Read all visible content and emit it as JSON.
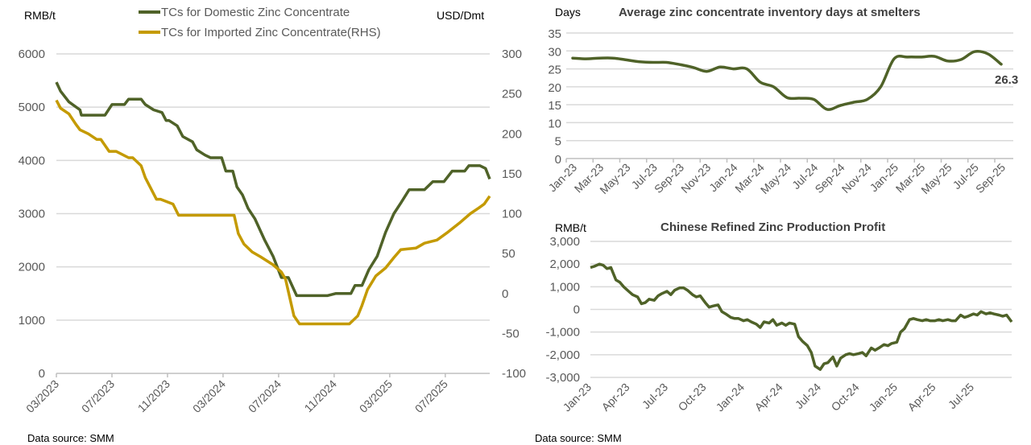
{
  "colors": {
    "domestic": "#4f6228",
    "imported": "#c49a00",
    "single": "#4f6228"
  },
  "chart_data": [
    {
      "type": "line",
      "title": "",
      "left_unit": "RMB/t",
      "right_unit": "USD/Dmt",
      "legend": [
        "TCs for Domestic Zinc Concentrate",
        "TCs for Imported Zinc Concentrate(RHS)"
      ],
      "legend_position": "top-center",
      "yticks_left": [
        "0",
        "1000",
        "2000",
        "3000",
        "4000",
        "5000",
        "6000"
      ],
      "ylim_left": [
        0,
        6000
      ],
      "yticks_right": [
        "-100",
        "-50",
        "0",
        "50",
        "100",
        "150",
        "200",
        "250",
        "300"
      ],
      "ylim_right": [
        -100,
        300
      ],
      "xticks": [
        "03/2023",
        "07/2023",
        "11/2023",
        "03/2024",
        "07/2024",
        "11/2024",
        "03/2025",
        "07/2025"
      ],
      "x_unit": "months since 03/2023",
      "xlim": [
        0,
        31.2
      ],
      "grid": true,
      "source": "Data source: SMM",
      "series": [
        {
          "name": "TCs for Domestic Zinc Concentrate",
          "axis": "left",
          "x": [
            0,
            0.3,
            0.9,
            1.7,
            1.8,
            3.5,
            4.0,
            4.9,
            5.2,
            6.1,
            6.4,
            7.0,
            7.6,
            7.9,
            8.1,
            8.7,
            9.1,
            9.8,
            10.1,
            10.7,
            11.1,
            11.9,
            12.2,
            12.7,
            13.0,
            13.4,
            13.8,
            14.3,
            15.0,
            15.6,
            16.2,
            16.7,
            17.3,
            17.5,
            19.5,
            20.1,
            21.2,
            21.5,
            22.0,
            22.5,
            23.1,
            23.7,
            24.3,
            24.8,
            25.4,
            26.5,
            27.1,
            27.9,
            28.5,
            29.4,
            29.7,
            30.5,
            30.9,
            31.2
          ],
          "values": [
            5470,
            5300,
            5100,
            4950,
            4850,
            4850,
            5050,
            5050,
            5150,
            5150,
            5050,
            4950,
            4900,
            4750,
            4750,
            4650,
            4450,
            4350,
            4200,
            4100,
            4050,
            4050,
            3800,
            3800,
            3500,
            3350,
            3100,
            2900,
            2500,
            2200,
            1800,
            1800,
            1460,
            1460,
            1460,
            1500,
            1500,
            1650,
            1650,
            1950,
            2200,
            2650,
            3000,
            3200,
            3450,
            3450,
            3600,
            3600,
            3800,
            3800,
            3900,
            3900,
            3850,
            3650
          ]
        },
        {
          "name": "TCs for Imported Zinc Concentrate(RHS)",
          "axis": "right",
          "x": [
            0,
            0.3,
            0.9,
            1.4,
            1.7,
            2.3,
            2.9,
            3.2,
            3.8,
            4.3,
            5.2,
            5.5,
            6.1,
            6.4,
            7.2,
            7.5,
            8.4,
            8.8,
            12.8,
            13.1,
            13.5,
            14.1,
            14.7,
            15.6,
            16.2,
            16.5,
            16.8,
            17.1,
            17.5,
            17.8,
            21.1,
            21.7,
            22.0,
            22.4,
            23.0,
            23.7,
            24.3,
            24.8,
            25.9,
            26.5,
            27.4,
            28.2,
            29.0,
            29.8,
            30.4,
            30.8,
            31.2
          ],
          "values": [
            242,
            232,
            225,
            212,
            205,
            200,
            193,
            193,
            178,
            178,
            170,
            170,
            160,
            145,
            118,
            118,
            112,
            98,
            98,
            75,
            62,
            52,
            46,
            36,
            27,
            18,
            -5,
            -28,
            -38,
            -38,
            -38,
            -28,
            -15,
            5,
            22,
            32,
            45,
            55,
            57,
            63,
            67,
            77,
            88,
            100,
            107,
            112,
            122
          ]
        }
      ]
    },
    {
      "type": "line",
      "title": "Average zinc concentrate inventory days at smelters",
      "y_unit": "Days",
      "yticks": [
        "0",
        "5",
        "10",
        "15",
        "20",
        "25",
        "30",
        "35"
      ],
      "ylim": [
        0,
        35
      ],
      "xticks": [
        "Jan-23",
        "Mar-23",
        "May-23",
        "Jul-23",
        "Sep-23",
        "Nov-23",
        "Jan-24",
        "Mar-24",
        "May-24",
        "Jul-24",
        "Sep-24",
        "Nov-24",
        "Jan-25",
        "Mar-25",
        "May-25",
        "Jul-25",
        "Sep-25"
      ],
      "x_unit": "months since Jan-23",
      "xlim": [
        0,
        32.6
      ],
      "grid": true,
      "annotation": "26.3",
      "source": "",
      "series": [
        {
          "name": "Inventory days",
          "x": [
            0,
            1,
            2,
            3,
            4,
            5,
            6,
            7,
            8,
            9,
            10,
            11,
            12,
            13,
            14,
            15,
            16,
            17,
            18,
            19,
            20,
            21,
            22,
            23,
            24,
            25,
            26,
            27,
            28,
            29,
            30,
            31,
            32
          ],
          "values": [
            28.0,
            27.8,
            28.0,
            28.0,
            27.5,
            27.0,
            26.8,
            26.8,
            26.2,
            25.4,
            24.3,
            25.5,
            25.0,
            25.0,
            21.3,
            20.0,
            17.0,
            16.8,
            16.5,
            13.7,
            14.8,
            15.7,
            16.5,
            20.0,
            27.8,
            28.3,
            28.3,
            28.5,
            27.2,
            27.6,
            29.8,
            29.2,
            26.3
          ]
        }
      ]
    },
    {
      "type": "line",
      "title": "Chinese Refined Zinc Production Profit",
      "y_unit": "RMB/t",
      "yticks": [
        "-3,000",
        "-2,000",
        "-1,000",
        "0",
        "1,000",
        "2,000",
        "3,000"
      ],
      "ylim": [
        -3000,
        3000
      ],
      "xticks": [
        "Jan-23",
        "Apr-23",
        "Jul-23",
        "Oct-23",
        "Jan-24",
        "Apr-24",
        "Jul-24",
        "Oct-24",
        "Jan-25",
        "Apr-25",
        "Jul-25"
      ],
      "x_unit": "months since Jan-23",
      "xlim": [
        0,
        33
      ],
      "grid": true,
      "source": "Data source: SMM",
      "series": [
        {
          "name": "Profit",
          "x": [
            0,
            0.3,
            0.7,
            1.0,
            1.3,
            1.6,
            2.0,
            2.3,
            2.6,
            3.0,
            3.3,
            3.7,
            4.0,
            4.3,
            4.6,
            5.0,
            5.3,
            5.6,
            6.0,
            6.3,
            6.6,
            7.0,
            7.3,
            7.6,
            8.0,
            8.3,
            8.6,
            9.0,
            9.3,
            9.6,
            10.0,
            10.3,
            10.6,
            11.0,
            11.3,
            11.6,
            12.0,
            12.3,
            12.6,
            13.0,
            13.3,
            13.6,
            14.0,
            14.3,
            14.6,
            15.0,
            15.3,
            15.6,
            16.0,
            16.3,
            16.6,
            17.0,
            17.3,
            17.6,
            18.0,
            18.3,
            18.6,
            19.0,
            19.3,
            19.6,
            20.0,
            20.3,
            20.6,
            21.0,
            21.3,
            21.6,
            22.0,
            22.3,
            22.6,
            23.0,
            23.3,
            23.6,
            24.0,
            24.3,
            24.6,
            25.0,
            25.3,
            25.6,
            26.0,
            26.3,
            26.6,
            27.0,
            27.3,
            27.6,
            28.0,
            28.3,
            28.6,
            29.0,
            29.3,
            29.6,
            30.0,
            30.3,
            30.6,
            31.0,
            31.3,
            31.6,
            32.0,
            32.3,
            32.6,
            33.0
          ],
          "values": [
            1850,
            1900,
            2000,
            1950,
            1800,
            1850,
            1300,
            1200,
            1000,
            800,
            650,
            550,
            250,
            300,
            450,
            400,
            600,
            700,
            800,
            650,
            850,
            950,
            950,
            850,
            650,
            550,
            600,
            300,
            100,
            150,
            200,
            -100,
            -200,
            -350,
            -400,
            -400,
            -500,
            -450,
            -550,
            -650,
            -800,
            -550,
            -600,
            -450,
            -700,
            -600,
            -700,
            -600,
            -650,
            -1200,
            -1400,
            -1600,
            -1900,
            -2500,
            -2650,
            -2400,
            -2350,
            -2100,
            -2500,
            -2150,
            -2000,
            -1950,
            -2000,
            -1950,
            -1900,
            -2050,
            -1700,
            -1800,
            -1700,
            -1550,
            -1600,
            -1500,
            -1450,
            -1000,
            -850,
            -450,
            -400,
            -450,
            -500,
            -450,
            -500,
            -500,
            -450,
            -500,
            -450,
            -500,
            -500,
            -250,
            -350,
            -300,
            -200,
            -250,
            -100,
            -200,
            -150,
            -200,
            -250,
            -300,
            -250,
            -550
          ]
        }
      ]
    }
  ]
}
